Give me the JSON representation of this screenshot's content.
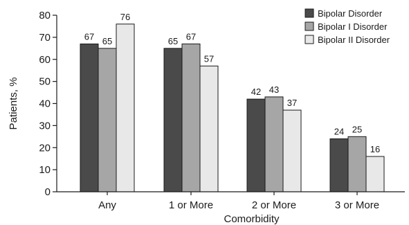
{
  "chart_data": {
    "type": "bar",
    "title": "",
    "xlabel": "Comorbidity",
    "ylabel": "Patients, %",
    "ylim": [
      0,
      80
    ],
    "yticks": [
      0,
      10,
      20,
      30,
      40,
      50,
      60,
      70,
      80
    ],
    "grid": false,
    "legend_position": "top-right",
    "categories": [
      "Any",
      "1 or More",
      "2 or More",
      "3 or More"
    ],
    "series": [
      {
        "name": "Bipolar Disorder",
        "color": "#4a4a4a",
        "values": [
          67,
          65,
          42,
          24
        ]
      },
      {
        "name": "Bipolar I Disorder",
        "color": "#a6a6a6",
        "values": [
          65,
          67,
          43,
          25
        ]
      },
      {
        "name": "Bipolar II Disorder",
        "color": "#e8e8e8",
        "values": [
          76,
          57,
          37,
          16
        ]
      }
    ]
  }
}
